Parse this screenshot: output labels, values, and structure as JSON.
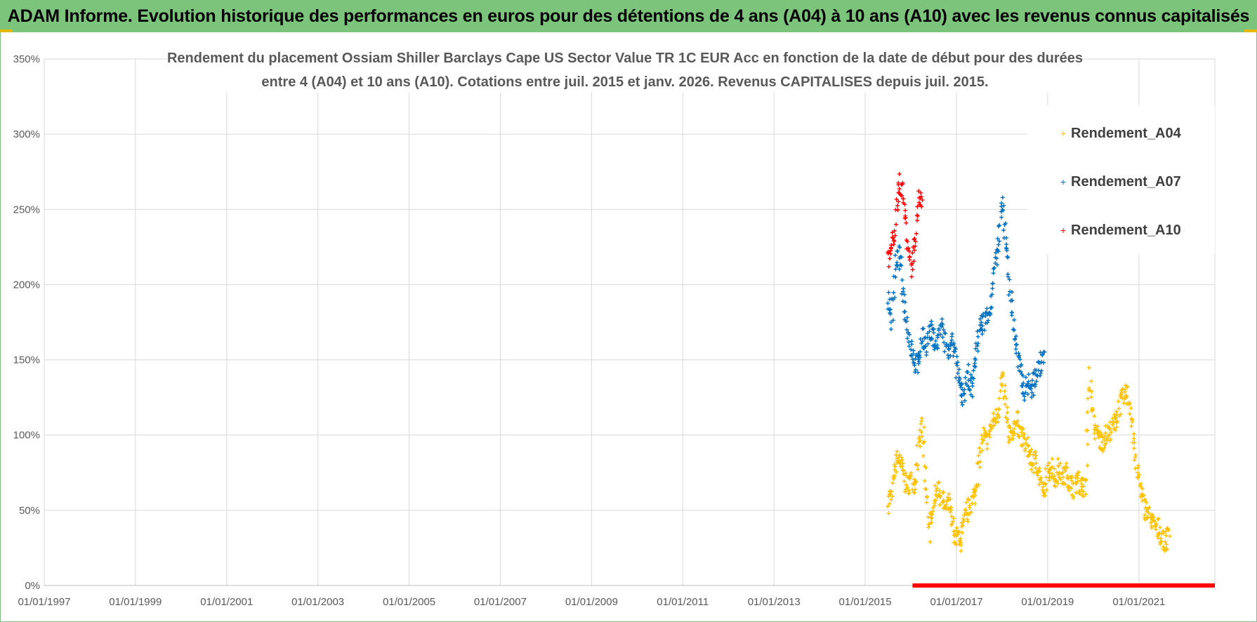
{
  "banner": {
    "title": "ADAM Informe. Evolution historique des performances en euros pour des détentions de 4 ans (A04) à 10 ans (A10) avec les revenus connus capitalisés"
  },
  "colors": {
    "banner_bg": "#7cc47c",
    "A04": "#ffc000",
    "A07": "#0070c0",
    "A10": "#ff0000",
    "grid": "#d9d9d9"
  },
  "chart_data": {
    "type": "scatter",
    "title_lines": [
      "Rendement du placement Ossiam Shiller Barclays Cape US Sector Value TR 1C EUR Acc en fonction de la date de début pour des durées",
      "entre 4 (A04) et 10 ans (A10).  Cotations entre juil. 2015 et janv. 2026. Revenus CAPITALISES depuis juil. 2015."
    ],
    "x_axis": {
      "type": "date",
      "min": "1997-01-01",
      "max": "2022-09-01",
      "tick_labels": [
        "01/01/1997",
        "01/01/1999",
        "01/01/2001",
        "01/01/2003",
        "01/01/2005",
        "01/01/2007",
        "01/01/2009",
        "01/01/2011",
        "01/01/2013",
        "01/01/2015",
        "01/01/2017",
        "01/01/2019",
        "01/01/2021"
      ],
      "tick_dates": [
        "1997-01-01",
        "1999-01-01",
        "2001-01-01",
        "2003-01-01",
        "2005-01-01",
        "2007-01-01",
        "2009-01-01",
        "2011-01-01",
        "2013-01-01",
        "2015-01-01",
        "2017-01-01",
        "2019-01-01",
        "2021-01-01"
      ]
    },
    "y_axis": {
      "min": 0,
      "max": 350,
      "tick_values": [
        0,
        50,
        100,
        150,
        200,
        250,
        300,
        350
      ],
      "tick_labels": [
        "0%",
        "50%",
        "100%",
        "150%",
        "200%",
        "250%",
        "300%",
        "350%"
      ]
    },
    "grid": true,
    "legend_position": "top-right",
    "marker": "+",
    "series": [
      {
        "name": "Rendement_A04",
        "color": "#ffc000",
        "points": [
          [
            "2015-07-01",
            55
          ],
          [
            "2015-08-01",
            60
          ],
          [
            "2015-09-01",
            80
          ],
          [
            "2015-10-01",
            85
          ],
          [
            "2015-11-01",
            75
          ],
          [
            "2015-12-01",
            65
          ],
          [
            "2016-01-01",
            70
          ],
          [
            "2016-02-01",
            68
          ],
          [
            "2016-03-01",
            90
          ],
          [
            "2016-04-01",
            108
          ],
          [
            "2016-05-01",
            65
          ],
          [
            "2016-06-01",
            35
          ],
          [
            "2016-07-01",
            55
          ],
          [
            "2016-08-01",
            65
          ],
          [
            "2016-09-01",
            60
          ],
          [
            "2016-10-01",
            50
          ],
          [
            "2016-11-01",
            55
          ],
          [
            "2016-12-01",
            40
          ],
          [
            "2017-01-01",
            32
          ],
          [
            "2017-02-01",
            28
          ],
          [
            "2017-03-01",
            40
          ],
          [
            "2017-04-01",
            50
          ],
          [
            "2017-05-01",
            55
          ],
          [
            "2017-06-01",
            62
          ],
          [
            "2017-07-01",
            80
          ],
          [
            "2017-08-01",
            100
          ],
          [
            "2017-09-01",
            95
          ],
          [
            "2017-10-01",
            105
          ],
          [
            "2017-11-01",
            110
          ],
          [
            "2017-12-01",
            115
          ],
          [
            "2018-01-01",
            138
          ],
          [
            "2018-02-01",
            120
          ],
          [
            "2018-03-01",
            95
          ],
          [
            "2018-04-01",
            105
          ],
          [
            "2018-05-01",
            110
          ],
          [
            "2018-06-01",
            100
          ],
          [
            "2018-07-01",
            95
          ],
          [
            "2018-08-01",
            90
          ],
          [
            "2018-09-01",
            80
          ],
          [
            "2018-10-01",
            85
          ],
          [
            "2018-11-01",
            70
          ],
          [
            "2018-12-01",
            60
          ],
          [
            "2019-01-01",
            75
          ],
          [
            "2019-02-01",
            80
          ],
          [
            "2019-03-01",
            70
          ],
          [
            "2019-04-01",
            78
          ],
          [
            "2019-05-01",
            72
          ],
          [
            "2019-06-01",
            75
          ],
          [
            "2019-07-01",
            68
          ],
          [
            "2019-08-01",
            65
          ],
          [
            "2019-09-01",
            70
          ],
          [
            "2019-10-01",
            66
          ],
          [
            "2019-11-01",
            64
          ],
          [
            "2019-12-01",
            140
          ],
          [
            "2020-01-01",
            110
          ],
          [
            "2020-02-01",
            100
          ],
          [
            "2020-03-01",
            95
          ],
          [
            "2020-04-01",
            98
          ],
          [
            "2020-05-01",
            102
          ],
          [
            "2020-06-01",
            105
          ],
          [
            "2020-07-01",
            110
          ],
          [
            "2020-08-01",
            120
          ],
          [
            "2020-09-01",
            125
          ],
          [
            "2020-10-01",
            128
          ],
          [
            "2020-11-01",
            115
          ],
          [
            "2020-12-01",
            85
          ],
          [
            "2021-01-01",
            70
          ],
          [
            "2021-02-01",
            55
          ],
          [
            "2021-03-01",
            50
          ],
          [
            "2021-04-01",
            45
          ],
          [
            "2021-05-01",
            40
          ],
          [
            "2021-06-01",
            38
          ],
          [
            "2021-07-01",
            32
          ],
          [
            "2021-08-01",
            28
          ],
          [
            "2021-09-01",
            35
          ]
        ]
      },
      {
        "name": "Rendement_A07",
        "color": "#0070c0",
        "points": [
          [
            "2015-07-01",
            195
          ],
          [
            "2015-08-01",
            175
          ],
          [
            "2015-09-01",
            215
          ],
          [
            "2015-10-01",
            220
          ],
          [
            "2015-11-01",
            195
          ],
          [
            "2015-12-01",
            175
          ],
          [
            "2016-01-01",
            160
          ],
          [
            "2016-02-01",
            150
          ],
          [
            "2016-03-01",
            145
          ],
          [
            "2016-04-01",
            165
          ],
          [
            "2016-05-01",
            160
          ],
          [
            "2016-06-01",
            170
          ],
          [
            "2016-07-01",
            165
          ],
          [
            "2016-08-01",
            160
          ],
          [
            "2016-09-01",
            175
          ],
          [
            "2016-10-01",
            160
          ],
          [
            "2016-11-01",
            155
          ],
          [
            "2016-12-01",
            165
          ],
          [
            "2017-01-01",
            145
          ],
          [
            "2017-02-01",
            130
          ],
          [
            "2017-03-01",
            125
          ],
          [
            "2017-04-01",
            140
          ],
          [
            "2017-05-01",
            130
          ],
          [
            "2017-06-01",
            150
          ],
          [
            "2017-07-01",
            170
          ],
          [
            "2017-08-01",
            175
          ],
          [
            "2017-09-01",
            180
          ],
          [
            "2017-10-01",
            185
          ],
          [
            "2017-11-01",
            210
          ],
          [
            "2017-12-01",
            225
          ],
          [
            "2018-01-01",
            255
          ],
          [
            "2018-02-01",
            230
          ],
          [
            "2018-03-01",
            200
          ],
          [
            "2018-04-01",
            175
          ],
          [
            "2018-05-01",
            155
          ],
          [
            "2018-06-01",
            140
          ],
          [
            "2018-07-01",
            130
          ],
          [
            "2018-08-01",
            135
          ],
          [
            "2018-09-01",
            130
          ],
          [
            "2018-10-01",
            140
          ],
          [
            "2018-11-01",
            145
          ],
          [
            "2018-12-01",
            155
          ]
        ]
      },
      {
        "name": "Rendement_A10",
        "color": "#ff0000",
        "points": [
          [
            "2015-07-01",
            215
          ],
          [
            "2015-08-01",
            225
          ],
          [
            "2015-09-01",
            240
          ],
          [
            "2015-10-01",
            270
          ],
          [
            "2015-11-01",
            260
          ],
          [
            "2015-12-01",
            235
          ],
          [
            "2016-01-01",
            210
          ],
          [
            "2016-02-01",
            225
          ],
          [
            "2016-03-01",
            255
          ],
          [
            "2016-04-01",
            260
          ]
        ]
      }
    ],
    "zero_baseline": {
      "color": "#ff0000",
      "from": "2016-01-15",
      "to": "2022-09-01",
      "value": 0
    }
  }
}
